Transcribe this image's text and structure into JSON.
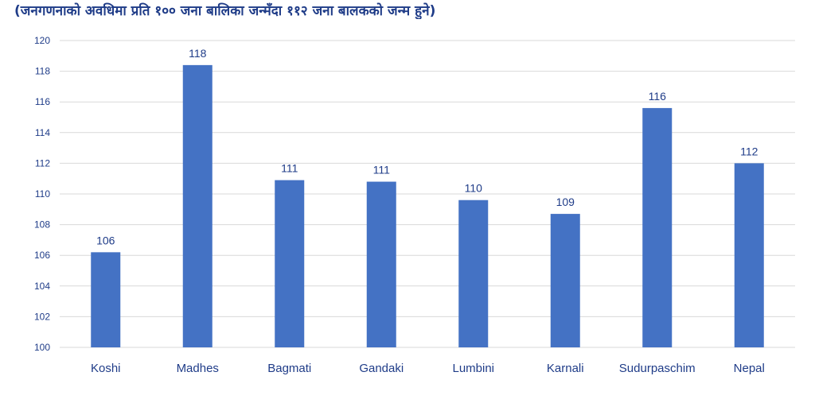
{
  "subtitle": "(जनगणनाको अवधिमा प्रति १०० जना बालिका जन्मँदा ११२ जना बालकको जन्म हुने)",
  "colors": {
    "bar": "#4472c4",
    "text": "#1f3c88",
    "grid": "#d9d9d9"
  },
  "chart_data": {
    "type": "bar",
    "title": "",
    "xlabel": "",
    "ylabel": "",
    "categories": [
      "Koshi",
      "Madhes",
      "Bagmati",
      "Gandaki",
      "Lumbini",
      "Karnali",
      "Sudurpaschim",
      "Nepal"
    ],
    "values": [
      106.2,
      118.4,
      110.9,
      110.8,
      109.6,
      108.7,
      115.6,
      112.0
    ],
    "data_labels": [
      "106",
      "118",
      "111",
      "111",
      "110",
      "109",
      "116",
      "112"
    ],
    "ylim": [
      100,
      120
    ],
    "yticks": [
      "100",
      "102",
      "104",
      "106",
      "108",
      "110",
      "112",
      "114",
      "116",
      "118",
      "120"
    ],
    "grid": true,
    "legend": "none"
  }
}
